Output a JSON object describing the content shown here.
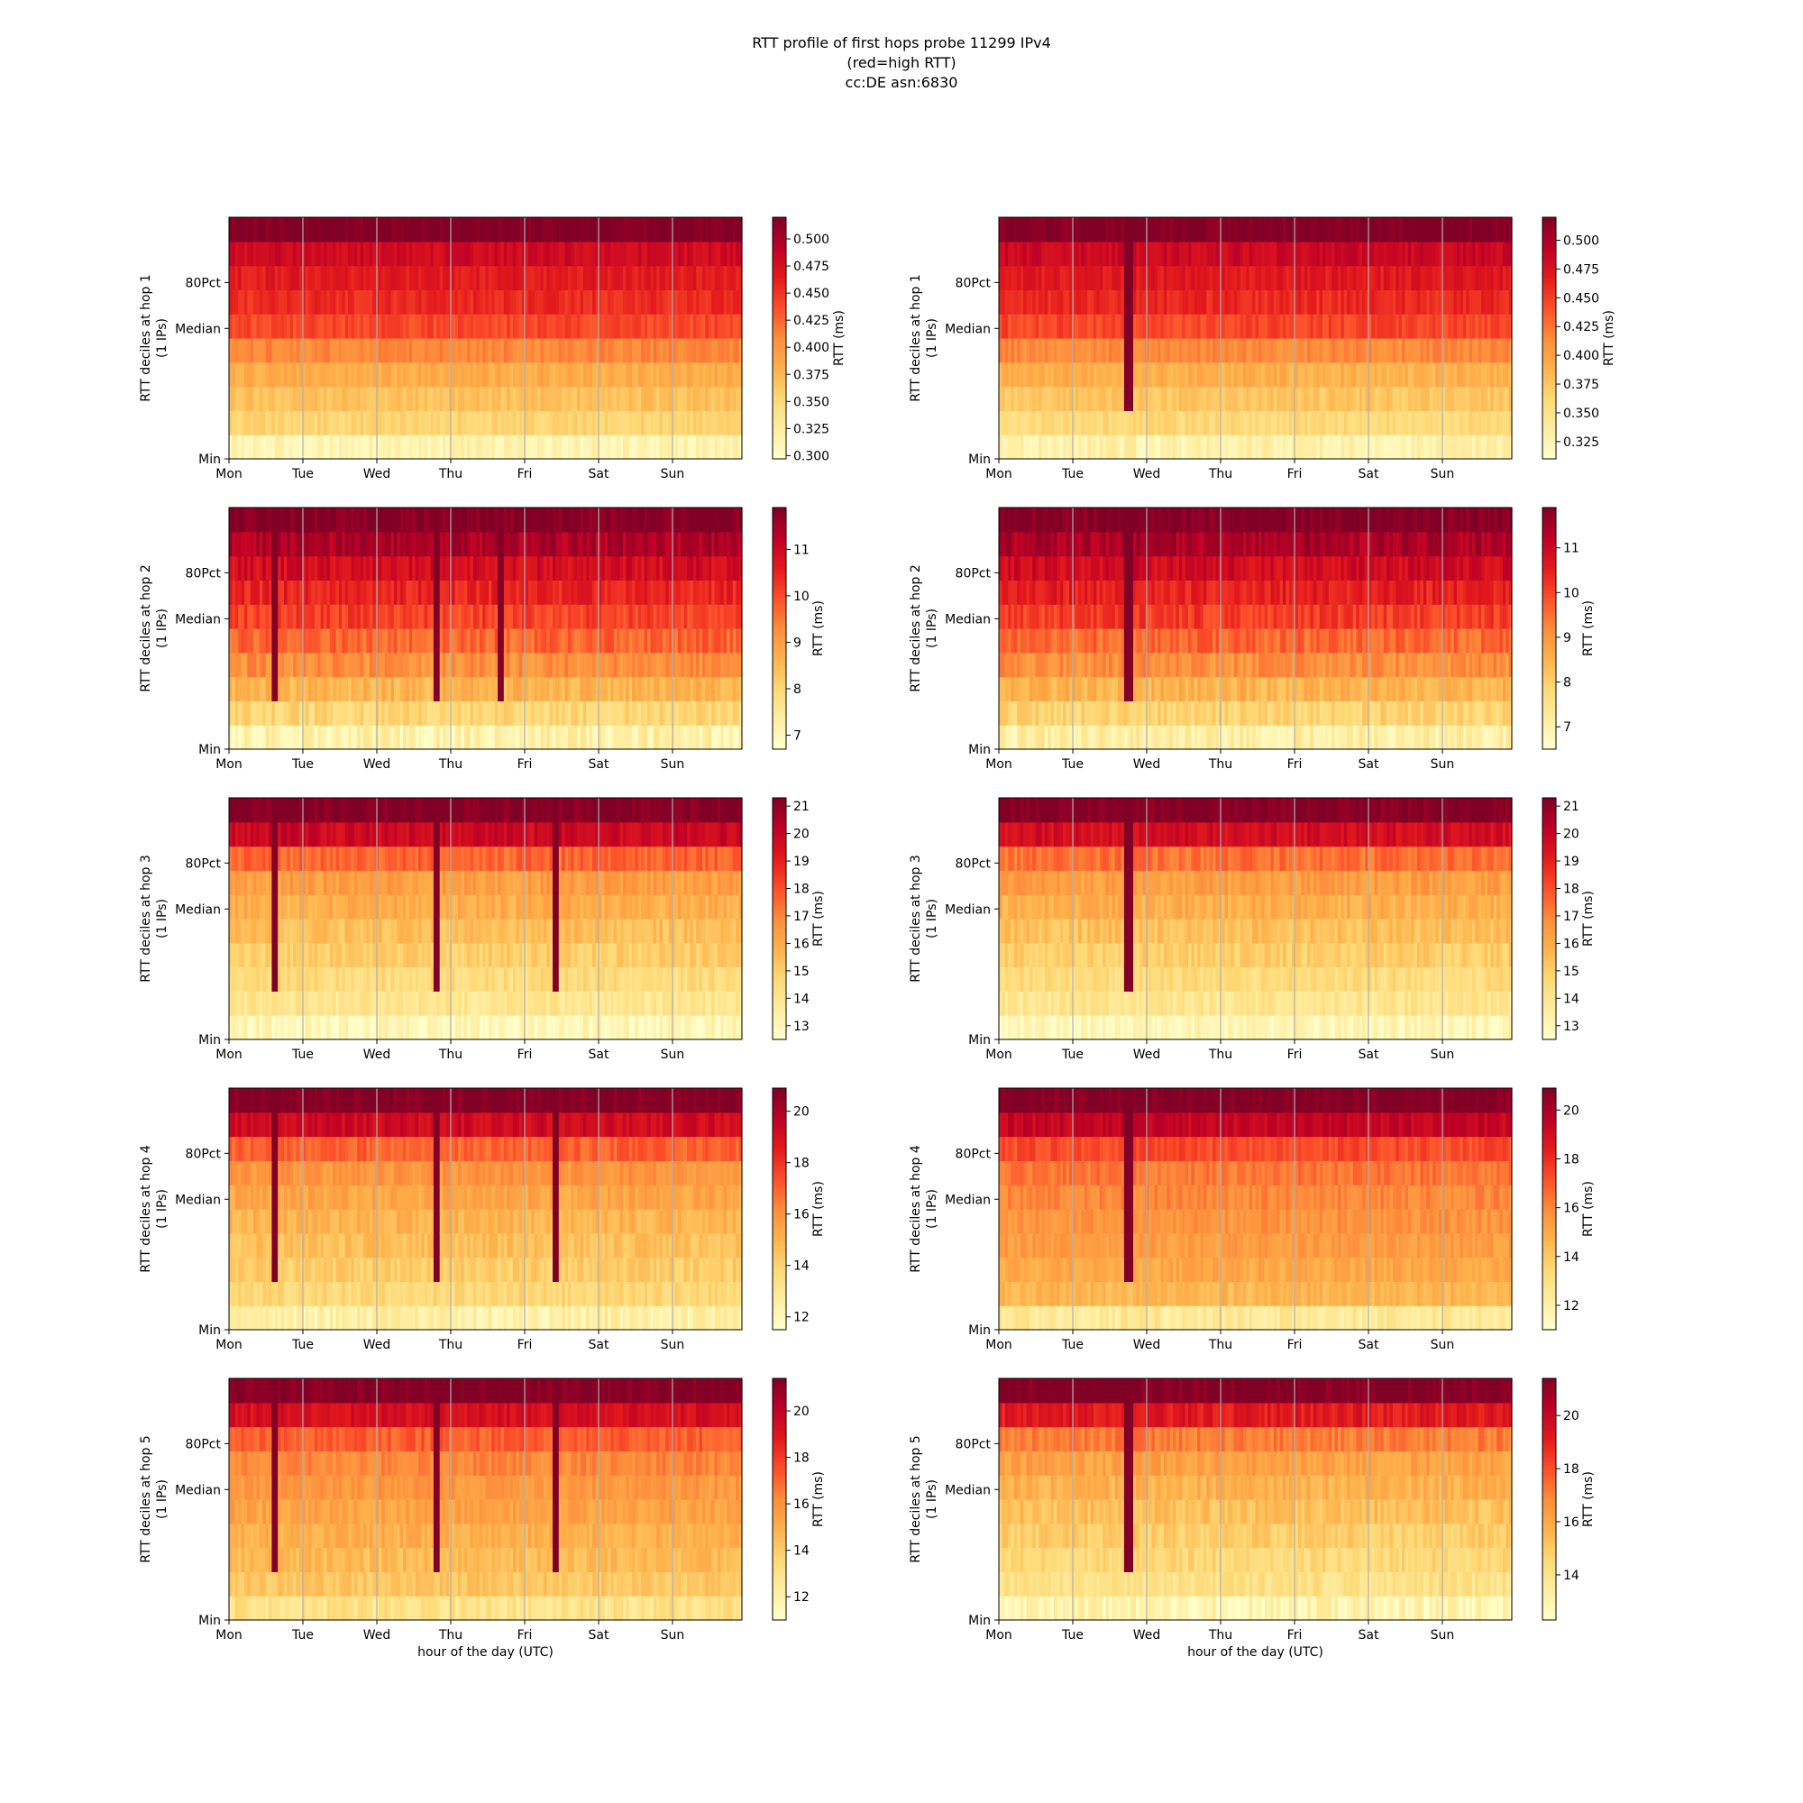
{
  "title_lines": [
    "RTT profile of first hops probe 11299 IPv4",
    "(red=high RTT)",
    "cc:DE asn:6830"
  ],
  "chart_data": {
    "type": "heatmap",
    "x_tick_labels": [
      "Mon",
      "Tue",
      "Wed",
      "Thu",
      "Fri",
      "Sat",
      "Sun"
    ],
    "y_tick_labels": [
      "Min",
      "Median",
      "80Pct"
    ],
    "xlabel": "hour of the day (UTC)",
    "colorbar_label": "RTT (ms)",
    "colormap": "YlOrRd",
    "grid": "vertical lines at day boundaries",
    "panels": [
      {
        "hop": 1,
        "ylabel": [
          "RTT deciles at hop 1",
          "(1 IPs)"
        ],
        "column": "left",
        "colorbar_range": [
          0.297,
          0.52
        ],
        "colorbar_ticks": [
          0.3,
          0.325,
          0.35,
          0.375,
          0.4,
          0.425,
          0.45,
          0.475,
          0.5
        ],
        "tick_decimals": 3,
        "decile_profile": [
          0.315,
          0.355,
          0.37,
          0.385,
          0.41,
          0.44,
          0.455,
          0.465,
          0.48,
          0.52
        ],
        "noise": 0.01,
        "spikes": []
      },
      {
        "hop": 1,
        "ylabel": [
          "RTT deciles at hop 1",
          "(1 IPs)"
        ],
        "column": "right",
        "colorbar_range": [
          0.31,
          0.52
        ],
        "colorbar_ticks": [
          0.325,
          0.35,
          0.375,
          0.4,
          0.425,
          0.45,
          0.475,
          0.5
        ],
        "tick_decimals": 3,
        "decile_profile": [
          0.33,
          0.36,
          0.375,
          0.39,
          0.415,
          0.445,
          0.46,
          0.47,
          0.485,
          0.52
        ],
        "noise": 0.01,
        "spikes": [
          1.75
        ]
      },
      {
        "hop": 2,
        "ylabel": [
          "RTT deciles at hop 2",
          "(1 IPs)"
        ],
        "column": "left",
        "colorbar_range": [
          6.7,
          11.9
        ],
        "colorbar_ticks": [
          7,
          8,
          9,
          10,
          11
        ],
        "tick_decimals": 0,
        "decile_profile": [
          7.2,
          8.0,
          8.6,
          9.2,
          9.7,
          10.1,
          10.5,
          10.9,
          11.4,
          11.9
        ],
        "noise": 0.35,
        "spikes": [
          0.6,
          2.8,
          3.7
        ]
      },
      {
        "hop": 2,
        "ylabel": [
          "RTT deciles at hop 2",
          "(1 IPs)"
        ],
        "column": "right",
        "colorbar_range": [
          6.5,
          11.9
        ],
        "colorbar_ticks": [
          7,
          8,
          9,
          10,
          11
        ],
        "tick_decimals": 0,
        "decile_profile": [
          7.1,
          7.9,
          8.5,
          9.1,
          9.6,
          10.1,
          10.5,
          10.9,
          11.4,
          11.9
        ],
        "noise": 0.35,
        "spikes": [
          1.75
        ]
      },
      {
        "hop": 3,
        "ylabel": [
          "RTT deciles at hop 3",
          "(1 IPs)"
        ],
        "column": "left",
        "colorbar_range": [
          12.5,
          21.3
        ],
        "colorbar_ticks": [
          13,
          14,
          15,
          16,
          17,
          18,
          19,
          20,
          21
        ],
        "tick_decimals": 0,
        "decile_profile": [
          13.0,
          14.0,
          14.5,
          15.0,
          15.4,
          15.9,
          16.4,
          17.6,
          19.8,
          21.3
        ],
        "noise": 0.5,
        "spikes": [
          0.6,
          2.8,
          4.45
        ]
      },
      {
        "hop": 3,
        "ylabel": [
          "RTT deciles at hop 3",
          "(1 IPs)"
        ],
        "column": "right",
        "colorbar_range": [
          12.5,
          21.3
        ],
        "colorbar_ticks": [
          13,
          14,
          15,
          16,
          17,
          18,
          19,
          20,
          21
        ],
        "tick_decimals": 0,
        "decile_profile": [
          13.0,
          14.0,
          14.5,
          15.0,
          15.4,
          15.9,
          16.4,
          17.4,
          19.6,
          21.3
        ],
        "noise": 0.5,
        "spikes": [
          1.75
        ]
      },
      {
        "hop": 4,
        "ylabel": [
          "RTT deciles at hop 4",
          "(1 IPs)"
        ],
        "column": "left",
        "colorbar_range": [
          11.5,
          20.9
        ],
        "colorbar_ticks": [
          12,
          14,
          16,
          18,
          20
        ],
        "tick_decimals": 0,
        "decile_profile": [
          12.5,
          13.8,
          14.2,
          14.6,
          15.0,
          15.4,
          15.9,
          17.0,
          19.2,
          20.9
        ],
        "noise": 0.5,
        "spikes": [
          0.6,
          2.8,
          4.45
        ]
      },
      {
        "hop": 4,
        "ylabel": [
          "RTT deciles at hop 4",
          "(1 IPs)"
        ],
        "column": "right",
        "colorbar_range": [
          11,
          20.9
        ],
        "colorbar_ticks": [
          12,
          14,
          16,
          18,
          20
        ],
        "tick_decimals": 0,
        "decile_profile": [
          12.5,
          14.6,
          15.0,
          15.4,
          15.7,
          16.0,
          16.4,
          17.3,
          19.4,
          20.9
        ],
        "noise": 0.5,
        "spikes": [
          1.75
        ]
      },
      {
        "hop": 5,
        "ylabel": [
          "RTT deciles at hop 5",
          "(1 IPs)"
        ],
        "column": "left",
        "colorbar_range": [
          11,
          21.4
        ],
        "colorbar_ticks": [
          12,
          14,
          16,
          18,
          20
        ],
        "tick_decimals": 0,
        "decile_profile": [
          13.0,
          14.2,
          14.6,
          15.0,
          15.4,
          15.8,
          16.3,
          17.2,
          19.3,
          21.4
        ],
        "noise": 0.55,
        "spikes": [
          0.6,
          2.8,
          4.45
        ]
      },
      {
        "hop": 5,
        "ylabel": [
          "RTT deciles at hop 5",
          "(1 IPs)"
        ],
        "column": "right",
        "colorbar_range": [
          12.3,
          21.4
        ],
        "colorbar_ticks": [
          14,
          16,
          18,
          20
        ],
        "tick_decimals": 0,
        "decile_profile": [
          13.0,
          14.1,
          14.5,
          14.9,
          15.3,
          15.7,
          16.2,
          17.1,
          19.2,
          21.4
        ],
        "noise": 0.55,
        "spikes": [
          1.75
        ]
      }
    ]
  }
}
